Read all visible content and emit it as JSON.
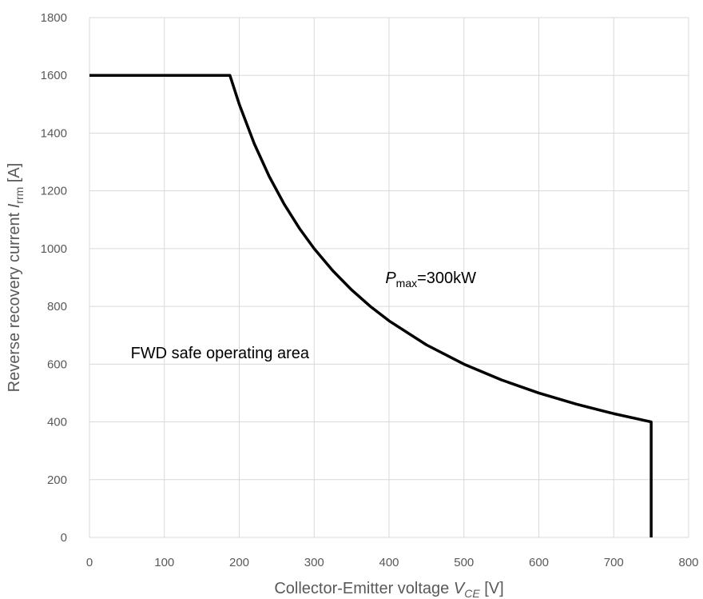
{
  "chart_data": {
    "type": "line",
    "title": "",
    "xlabel": {
      "prefix": "Collector-Emitter voltage ",
      "symbol": "V",
      "subscript": "CE",
      "unit": " [V]"
    },
    "ylabel": {
      "prefix": "Reverse recovery current ",
      "symbol": "I",
      "subscript": "rrm",
      "unit": " [A]"
    },
    "xlim": [
      0,
      800
    ],
    "ylim": [
      0,
      1800
    ],
    "xticks": [
      0,
      100,
      200,
      300,
      400,
      500,
      600,
      700,
      800
    ],
    "yticks": [
      0,
      200,
      400,
      600,
      800,
      1000,
      1200,
      1400,
      1600,
      1800
    ],
    "grid": true,
    "series": [
      {
        "x": [
          0,
          187.5,
          200,
          220,
          240,
          260,
          280,
          300,
          325,
          350,
          375,
          400,
          450,
          500,
          550,
          600,
          650,
          700,
          750,
          750
        ],
        "y": [
          1600,
          1600,
          1500,
          1363.6,
          1250,
          1153.8,
          1071.4,
          1000,
          923.1,
          857.1,
          800,
          750,
          666.7,
          600,
          545.5,
          500,
          461.5,
          428.6,
          400,
          0
        ],
        "color": "#000000"
      }
    ],
    "annotations": [
      {
        "symbol": "P",
        "subscript": "max",
        "text": "=300kW",
        "at": [
          395,
          880
        ]
      },
      {
        "text": "FWD safe operating area",
        "at": [
          55,
          620
        ]
      }
    ]
  }
}
